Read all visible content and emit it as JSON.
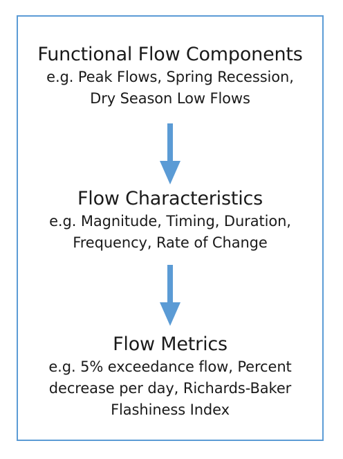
{
  "diagram": {
    "boxes": [
      {
        "title": "Functional Flow Components",
        "lines": [
          "e.g. Peak Flows, Spring Recession,",
          "Dry Season Low Flows"
        ]
      },
      {
        "title": "Flow Characteristics",
        "lines": [
          "e.g. Magnitude, Timing, Duration,",
          "Frequency, Rate of Change"
        ]
      },
      {
        "title": "Flow Metrics",
        "lines": [
          "e.g. 5% exceedance flow, Percent",
          "decrease per day, Richards-Baker",
          "Flashiness Index"
        ]
      }
    ],
    "colors": {
      "border": "#5b9bd5",
      "arrow": "#5b9bd5",
      "text": "#1a1a1a"
    }
  }
}
